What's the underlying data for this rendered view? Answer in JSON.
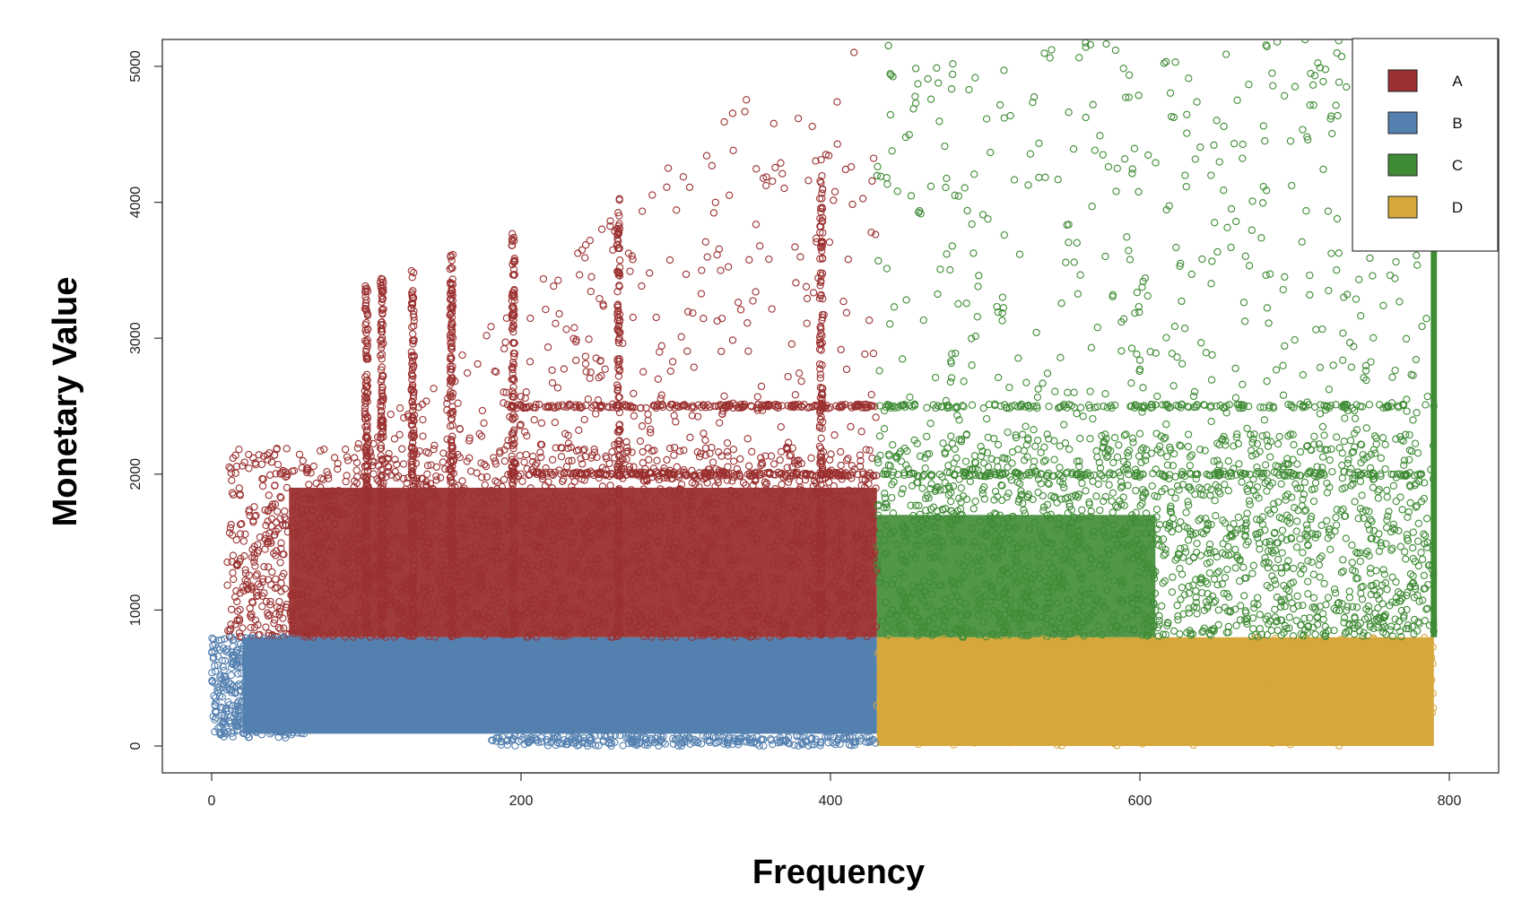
{
  "chart_data": {
    "type": "scatter",
    "title": "",
    "xlabel": "Frequency",
    "ylabel": "Monetary Value",
    "xlim": [
      -40,
      830
    ],
    "ylim": [
      -200,
      5200
    ],
    "x_ticks": [
      0,
      200,
      400,
      600,
      800
    ],
    "y_ticks": [
      0,
      1000,
      2000,
      3000,
      4000,
      5000
    ],
    "grid": false,
    "legend_position": "top-right",
    "marker": "open-circle",
    "segment_thresholds": {
      "frequency_split": 430,
      "monetary_split": 800
    },
    "series": [
      {
        "name": "A",
        "color": "#9b3030",
        "description_region": {
          "x": [
            10,
            430
          ],
          "y": [
            800,
            5200
          ]
        },
        "dense_band_upper": 2000,
        "vertical_streaks_x": [
          100,
          110,
          130,
          155,
          195,
          263,
          394
        ],
        "horizontal_streaks_y": [
          2000,
          2500
        ]
      },
      {
        "name": "B",
        "color": "#5480b0",
        "description_region": {
          "x": [
            0,
            430
          ],
          "y": [
            0,
            800
          ]
        }
      },
      {
        "name": "C",
        "color": "#3f8b35",
        "description_region": {
          "x": [
            430,
            790
          ],
          "y": [
            800,
            5200
          ]
        },
        "dense_band_upper": 2000,
        "vertical_streaks_x": [
          790
        ],
        "horizontal_streaks_y": [
          2000,
          2500
        ]
      },
      {
        "name": "D",
        "color": "#d6a83c",
        "description_region": {
          "x": [
            430,
            790
          ],
          "y": [
            0,
            800
          ]
        }
      }
    ],
    "legend": [
      {
        "label": "A",
        "color": "#9b3030"
      },
      {
        "label": "B",
        "color": "#5480b0"
      },
      {
        "label": "C",
        "color": "#3f8b35"
      },
      {
        "label": "D",
        "color": "#d6a83c"
      }
    ]
  }
}
